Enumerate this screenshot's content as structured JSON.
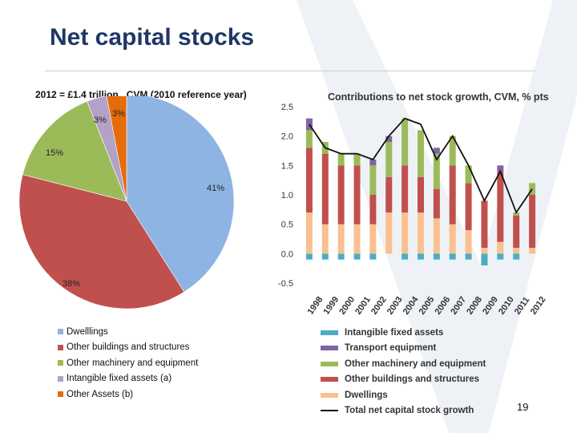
{
  "slide": {
    "title": "Net capital stocks",
    "page_number": "19"
  },
  "colors": {
    "dwellings_pie": "#8eb4e3",
    "other_buildings": "#c0504d",
    "other_machinery": "#9bbb59",
    "intangible_pie": "#b3a2c7",
    "other_assets": "#e46c0a",
    "intangible_bar": "#4bacc6",
    "transport": "#8064a2",
    "dwellings_bar": "#fac090",
    "total_line": "#111111"
  },
  "chart_data": [
    {
      "type": "pie",
      "title": "2012  = £1.4 trillion , CVM  (2010 reference year)",
      "slices": [
        {
          "name": "Dwelllings",
          "value": 41,
          "label": "41%"
        },
        {
          "name": "Other buildings and structures",
          "value": 38,
          "label": "38%"
        },
        {
          "name": "Other machinery and equipment",
          "value": 15,
          "label": "15%"
        },
        {
          "name": "Intangible fixed assets (a)",
          "value": 3,
          "label": "3%"
        },
        {
          "name": "Other Assets (b)",
          "value": 3,
          "label": "3%"
        }
      ],
      "legend_placement": "bottom"
    },
    {
      "type": "bar",
      "stacked": true,
      "title": "Contributions to net stock growth, CVM, % pts",
      "categories": [
        "1998",
        "1999",
        "2000",
        "2001",
        "2002",
        "2003",
        "2004",
        "2005",
        "2006",
        "2007",
        "2008",
        "2009",
        "2010",
        "2011",
        "2012"
      ],
      "series": [
        {
          "name": "Intangible fixed assets",
          "values": [
            -0.1,
            -0.1,
            -0.1,
            -0.1,
            -0.1,
            0.0,
            -0.1,
            -0.1,
            -0.1,
            -0.1,
            -0.1,
            -0.2,
            -0.1,
            -0.1,
            0.0
          ]
        },
        {
          "name": "Transport equipment",
          "values": [
            0.2,
            0.0,
            0.0,
            0.0,
            0.1,
            0.1,
            0.0,
            0.0,
            0.1,
            0.0,
            0.0,
            0.0,
            0.1,
            0.0,
            0.0
          ]
        },
        {
          "name": "Other machinery and equipment",
          "values": [
            0.3,
            0.2,
            0.2,
            0.2,
            0.5,
            0.6,
            0.8,
            0.8,
            0.6,
            0.5,
            0.3,
            0.0,
            0.0,
            0.05,
            0.2
          ]
        },
        {
          "name": "Other buildings and structures",
          "values": [
            1.1,
            1.2,
            1.0,
            1.0,
            0.5,
            0.6,
            0.8,
            0.6,
            0.5,
            1.0,
            0.8,
            0.8,
            1.2,
            0.55,
            0.9
          ]
        },
        {
          "name": "Dwellings",
          "values": [
            0.7,
            0.5,
            0.5,
            0.5,
            0.5,
            0.7,
            0.7,
            0.7,
            0.6,
            0.5,
            0.4,
            0.1,
            0.2,
            0.1,
            0.1
          ]
        }
      ],
      "line": {
        "name": "Total net capital stock growth",
        "values": [
          2.2,
          1.8,
          1.7,
          1.7,
          1.6,
          2.0,
          2.3,
          2.2,
          1.6,
          2.0,
          1.5,
          0.9,
          1.4,
          0.7,
          1.1
        ]
      },
      "ylim": [
        -0.5,
        2.5
      ],
      "yticks": [
        "-0.5",
        "0.0",
        "0.5",
        "1.0",
        "1.5",
        "2.0",
        "2.5"
      ],
      "legend_placement": "bottom"
    }
  ]
}
